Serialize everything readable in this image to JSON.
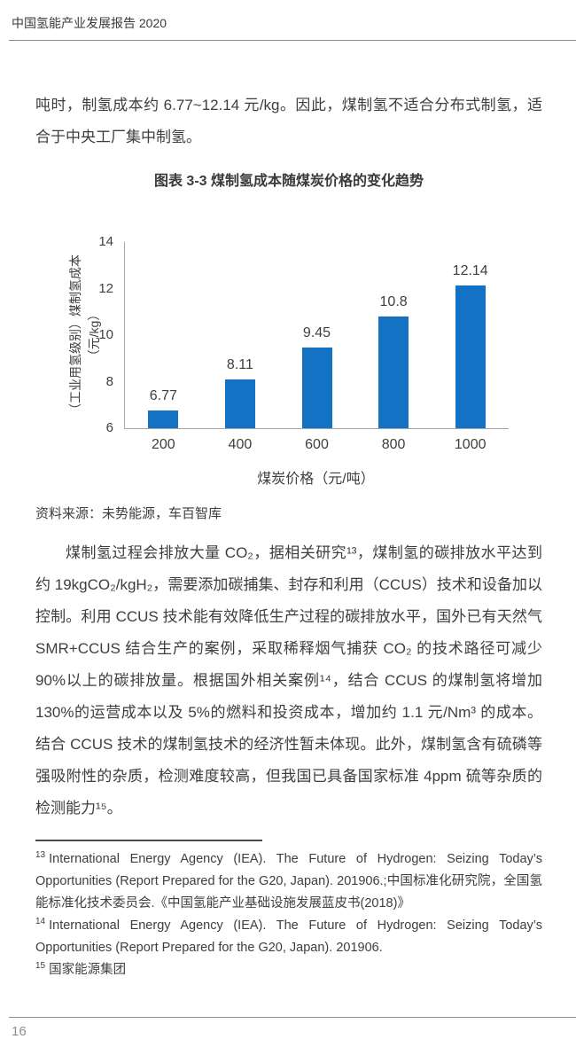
{
  "header": {
    "title": "中国氢能产业发展报告 2020"
  },
  "intro_paragraph": "吨时，制氢成本约 6.77~12.14 元/kg。因此，煤制氢不适合分布式制氢，适合于中央工厂集中制氢。",
  "figure": {
    "title": "图表 3-3 煤制氢成本随煤炭价格的变化趋势",
    "source": "资料来源：未势能源，车百智库"
  },
  "chart_data": {
    "type": "bar",
    "title": "图表 3-3 煤制氢成本随煤炭价格的变化趋势",
    "categories": [
      "200",
      "400",
      "600",
      "800",
      "1000"
    ],
    "values": [
      6.77,
      8.11,
      9.45,
      10.8,
      12.14
    ],
    "value_labels": [
      "6.77",
      "8.11",
      "9.45",
      "10.8",
      "12.14"
    ],
    "xlabel": "煤炭价格（元/吨）",
    "ylabel_main": "（工业用氢级别）煤制氢成本",
    "ylabel_unit": "（元/kg）",
    "ylim": [
      6,
      14
    ],
    "yticks": [
      6,
      8,
      10,
      12,
      14
    ],
    "grid": false,
    "legend": false,
    "bar_color": "#1472c4"
  },
  "body_paragraph": "煤制氢过程会排放大量 CO₂，据相关研究¹³，煤制氢的碳排放水平达到约 19kgCO₂/kgH₂，需要添加碳捕集、封存和利用（CCUS）技术和设备加以控制。利用 CCUS 技术能有效降低生产过程的碳排放水平，国外已有天然气 SMR+CCUS 结合生产的案例，采取稀释烟气捕获 CO₂ 的技术路径可减少 90%以上的碳排放量。根据国外相关案例¹⁴，结合 CCUS 的煤制氢将增加 130%的运营成本以及 5%的燃料和投资成本，增加约 1.1 元/Nm³ 的成本。结合 CCUS 技术的煤制氢技术的经济性暂未体现。此外，煤制氢含有硫磷等强吸附性的杂质，检测难度较高，但我国已具备国家标准 4ppm 硫等杂质的检测能力¹⁵。",
  "footnotes": [
    {
      "num": "13",
      "text": "International Energy Agency (IEA). The Future of Hydrogen: Seizing Today’s Opportunities (Report Prepared for the G20, Japan). 201906.;中国标准化研究院，全国氢能标准化技术委员会.《中国氢能产业基础设施发展蓝皮书(2018)》"
    },
    {
      "num": "14",
      "text": "International Energy Agency (IEA). The Future of Hydrogen: Seizing Today’s Opportunities (Report Prepared for the G20, Japan). 201906."
    },
    {
      "num": "15",
      "text": "国家能源集团"
    }
  ],
  "footer": {
    "page_number": "16"
  }
}
